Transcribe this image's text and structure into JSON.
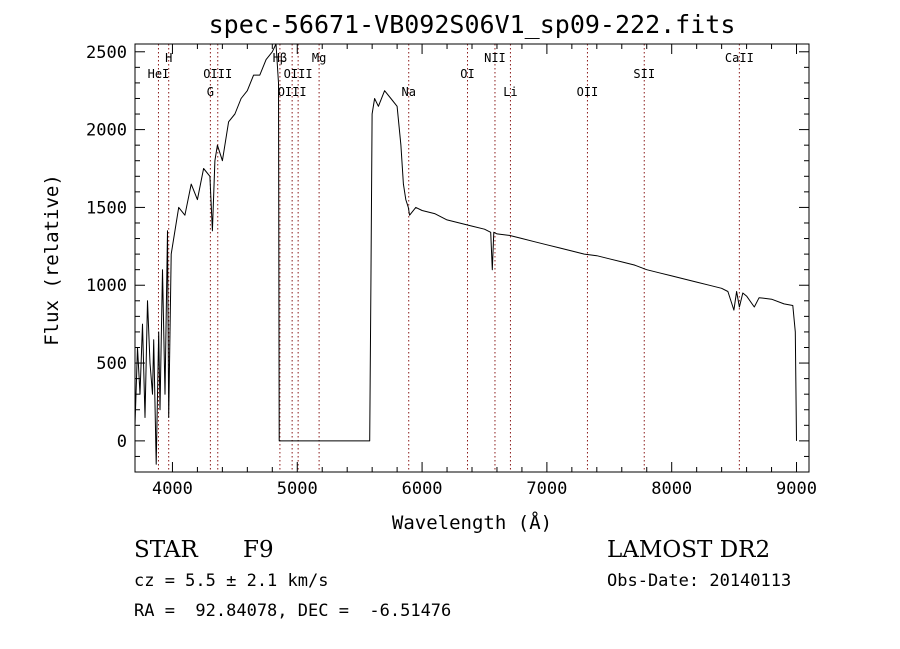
{
  "chart_data": {
    "type": "line",
    "title": "spec-56671-VB092S06V1_sp09-222.fits",
    "xlabel": "Wavelength (Å)",
    "ylabel": "Flux (relative)",
    "xlim": [
      3700,
      9100
    ],
    "ylim": [
      -200,
      2550
    ],
    "xticks": [
      4000,
      5000,
      6000,
      7000,
      8000,
      9000
    ],
    "yticks": [
      0,
      500,
      1000,
      1500,
      2000,
      2500
    ],
    "grid": false,
    "line_color": "#000000",
    "marker_color": "#8b1a1a",
    "series": [
      {
        "x": [
          3700,
          3720,
          3740,
          3760,
          3780,
          3800,
          3820,
          3840,
          3850,
          3870,
          3890,
          3900,
          3920,
          3940,
          3960,
          3970,
          3990,
          4010,
          4050,
          4100,
          4150,
          4200,
          4250,
          4300,
          4320,
          4340,
          4360,
          4400,
          4450,
          4500,
          4550,
          4600,
          4650,
          4700,
          4750,
          4800,
          4830,
          4850,
          4855,
          4900,
          5000,
          5100,
          5200,
          5300,
          5400,
          5500,
          5580,
          5590,
          5600,
          5620,
          5650,
          5700,
          5750,
          5800,
          5830,
          5850,
          5870,
          5890,
          5900,
          5950,
          6000,
          6100,
          6200,
          6300,
          6400,
          6500,
          6550,
          6563,
          6575,
          6600,
          6700,
          6800,
          6900,
          7000,
          7100,
          7200,
          7300,
          7400,
          7500,
          7600,
          7700,
          7800,
          7900,
          8000,
          8100,
          8200,
          8300,
          8400,
          8450,
          8498,
          8520,
          8542,
          8570,
          8600,
          8662,
          8700,
          8800,
          8900,
          8970,
          8990,
          9000
        ],
        "values": [
          100,
          600,
          300,
          750,
          150,
          900,
          500,
          300,
          650,
          -150,
          700,
          200,
          1100,
          300,
          1350,
          150,
          1200,
          1300,
          1500,
          1450,
          1650,
          1550,
          1750,
          1700,
          1350,
          1800,
          1900,
          1800,
          2050,
          2100,
          2200,
          2250,
          2350,
          2350,
          2450,
          2500,
          2550,
          2300,
          0,
          0,
          0,
          0,
          0,
          0,
          0,
          0,
          0,
          1000,
          2100,
          2200,
          2150,
          2250,
          2200,
          2150,
          1900,
          1650,
          1550,
          1500,
          1450,
          1500,
          1480,
          1460,
          1420,
          1400,
          1380,
          1360,
          1340,
          1100,
          1340,
          1330,
          1320,
          1300,
          1280,
          1260,
          1240,
          1220,
          1200,
          1190,
          1170,
          1150,
          1130,
          1100,
          1080,
          1060,
          1040,
          1020,
          1000,
          980,
          960,
          840,
          960,
          860,
          950,
          930,
          860,
          920,
          910,
          880,
          870,
          700,
          0
        ]
      }
    ],
    "lines": [
      {
        "label": "HeI",
        "x": 3888,
        "row": 2
      },
      {
        "label": "H",
        "x": 3970,
        "row": 1
      },
      {
        "label": "G",
        "x": 4304,
        "row": 3
      },
      {
        "label": "OIII",
        "x": 4363,
        "row": 2
      },
      {
        "label": "Hβ",
        "x": 4861,
        "row": 1
      },
      {
        "label": "OIII",
        "x": 4959,
        "row": 3
      },
      {
        "label": "OIII",
        "x": 5007,
        "row": 2
      },
      {
        "label": "Mg",
        "x": 5175,
        "row": 1
      },
      {
        "label": "Na",
        "x": 5893,
        "row": 3
      },
      {
        "label": "OI",
        "x": 6364,
        "row": 2
      },
      {
        "label": "NII",
        "x": 6584,
        "row": 1
      },
      {
        "label": "Li",
        "x": 6708,
        "row": 3
      },
      {
        "label": "OII",
        "x": 7325,
        "row": 3
      },
      {
        "label": "SII",
        "x": 7780,
        "row": 2
      },
      {
        "label": "CaII",
        "x": 8542,
        "row": 1
      }
    ]
  },
  "info": {
    "class": "STAR",
    "subclass": "F9",
    "survey": "LAMOST DR2",
    "cz": "cz = 5.5 ± 2.1 km/s",
    "obsdate": "Obs-Date: 20140113",
    "radec": "RA =  92.84078, DEC =  -6.51476"
  }
}
